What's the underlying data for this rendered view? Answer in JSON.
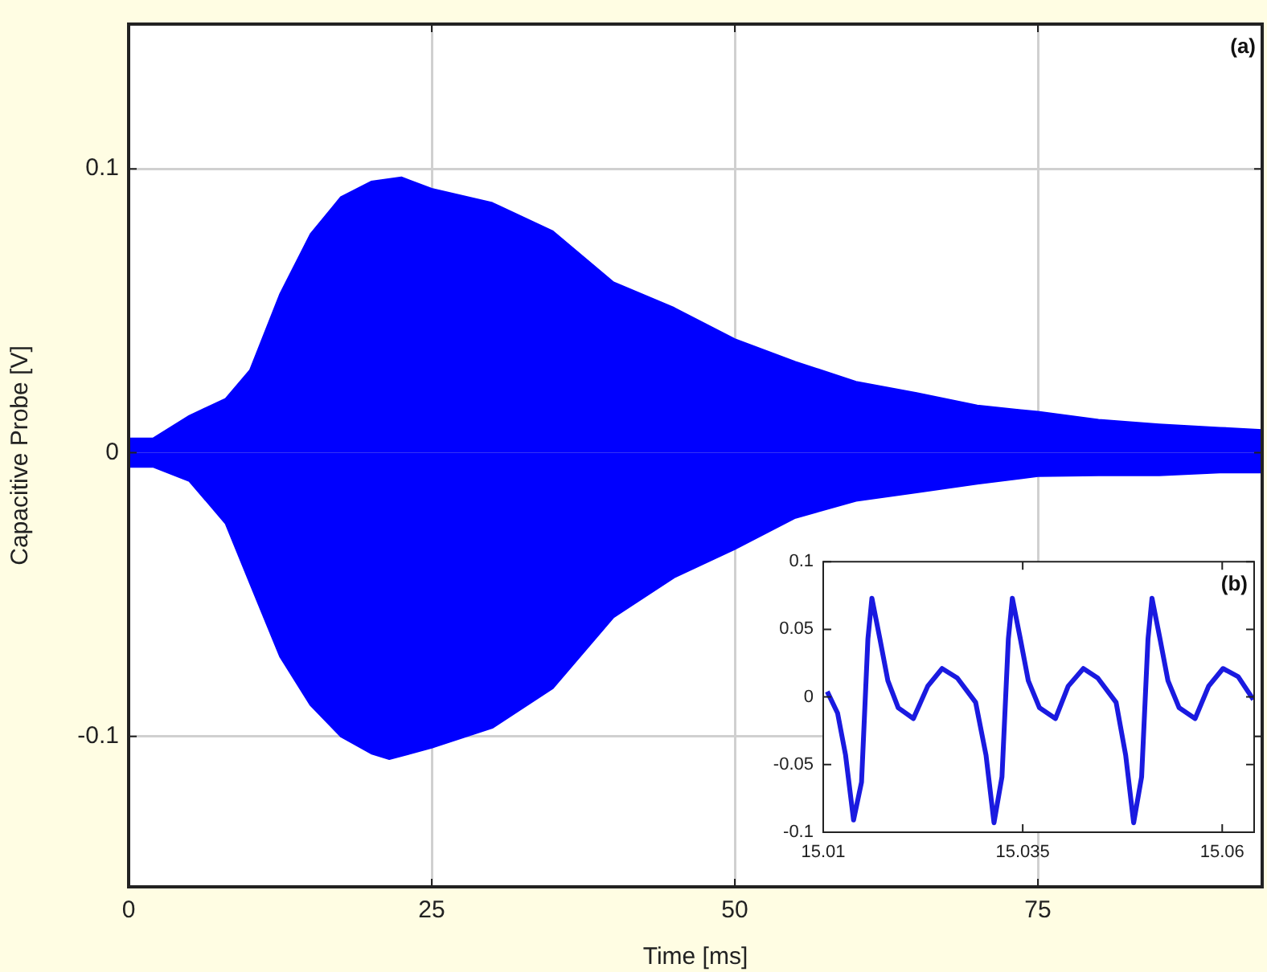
{
  "chart_data": [
    {
      "type": "area",
      "xlabel": "Time [ms]",
      "ylabel": "Capacitive Probe [V]",
      "xlim": [
        0,
        93.5
      ],
      "ylim": [
        -0.153,
        0.151
      ],
      "xticks": [
        0,
        25,
        50,
        75
      ],
      "yticks": [
        -0.1,
        0,
        0.1
      ],
      "grid": true,
      "annotations": [
        "(a)"
      ],
      "series": [
        {
          "color": "#0000ff",
          "x": [
            0,
            2,
            5,
            8,
            10,
            12.5,
            15,
            17.5,
            20,
            22.5,
            25,
            30,
            35,
            40,
            45,
            50,
            55,
            60,
            65,
            70,
            75,
            80,
            85,
            90,
            93.5
          ],
          "values": [
            0.005,
            0.005,
            0.013,
            0.019,
            0.029,
            0.056,
            0.077,
            0.09,
            0.0955,
            0.097,
            0.093,
            0.088,
            0.078,
            0.06,
            0.051,
            0.04,
            0.032,
            0.025,
            0.021,
            0.0166,
            0.0144,
            0.0116,
            0.01,
            0.0088,
            0.008
          ]
        },
        {
          "color": "#0000ff",
          "x": [
            0,
            2,
            5,
            8,
            10,
            12.5,
            15,
            17.5,
            20,
            21.5,
            25,
            30,
            35,
            40,
            45,
            50,
            55,
            60,
            65,
            70,
            75,
            80,
            85,
            90,
            93.5
          ],
          "values": [
            -0.005,
            -0.005,
            -0.01,
            -0.025,
            -0.046,
            -0.072,
            -0.089,
            -0.1,
            -0.106,
            -0.108,
            -0.104,
            -0.097,
            -0.083,
            -0.058,
            -0.044,
            -0.034,
            -0.023,
            -0.017,
            -0.014,
            -0.011,
            -0.0083,
            -0.008,
            -0.008,
            -0.007,
            -0.007
          ]
        }
      ]
    },
    {
      "type": "line",
      "xlim": [
        15.01,
        15.064
      ],
      "ylim": [
        -0.1,
        0.1
      ],
      "xticks": [
        15.01,
        15.035,
        15.06
      ],
      "yticks": [
        -0.1,
        -0.05,
        0,
        0.05,
        0.1
      ],
      "annotations": [
        "(b)"
      ],
      "series": [
        {
          "color": "#1a1ae0",
          "x": [
            15.0105,
            15.0118,
            15.0128,
            15.0138,
            15.0148,
            15.0156,
            15.0161,
            15.0171,
            15.0181,
            15.0194,
            15.0213,
            15.0231,
            15.0249,
            15.0268,
            15.0291,
            15.0304,
            15.0314,
            15.0324,
            15.0332,
            15.0337,
            15.0347,
            15.0357,
            15.0371,
            15.0391,
            15.0407,
            15.0426,
            15.0444,
            15.0467,
            15.0479,
            15.0489,
            15.0499,
            15.0507,
            15.0512,
            15.0522,
            15.0532,
            15.0546,
            15.0566,
            15.0583,
            15.0601,
            15.062,
            15.0639
          ],
          "values": [
            0.004,
            -0.012,
            -0.043,
            -0.091,
            -0.063,
            0.043,
            0.073,
            0.043,
            0.012,
            -0.008,
            -0.016,
            0.008,
            0.021,
            0.014,
            -0.004,
            -0.043,
            -0.093,
            -0.059,
            0.043,
            0.073,
            0.043,
            0.012,
            -0.008,
            -0.016,
            0.008,
            0.021,
            0.014,
            -0.004,
            -0.043,
            -0.093,
            -0.059,
            0.043,
            0.073,
            0.043,
            0.012,
            -0.008,
            -0.016,
            0.008,
            0.021,
            0.015,
            -0.002
          ]
        }
      ]
    }
  ]
}
